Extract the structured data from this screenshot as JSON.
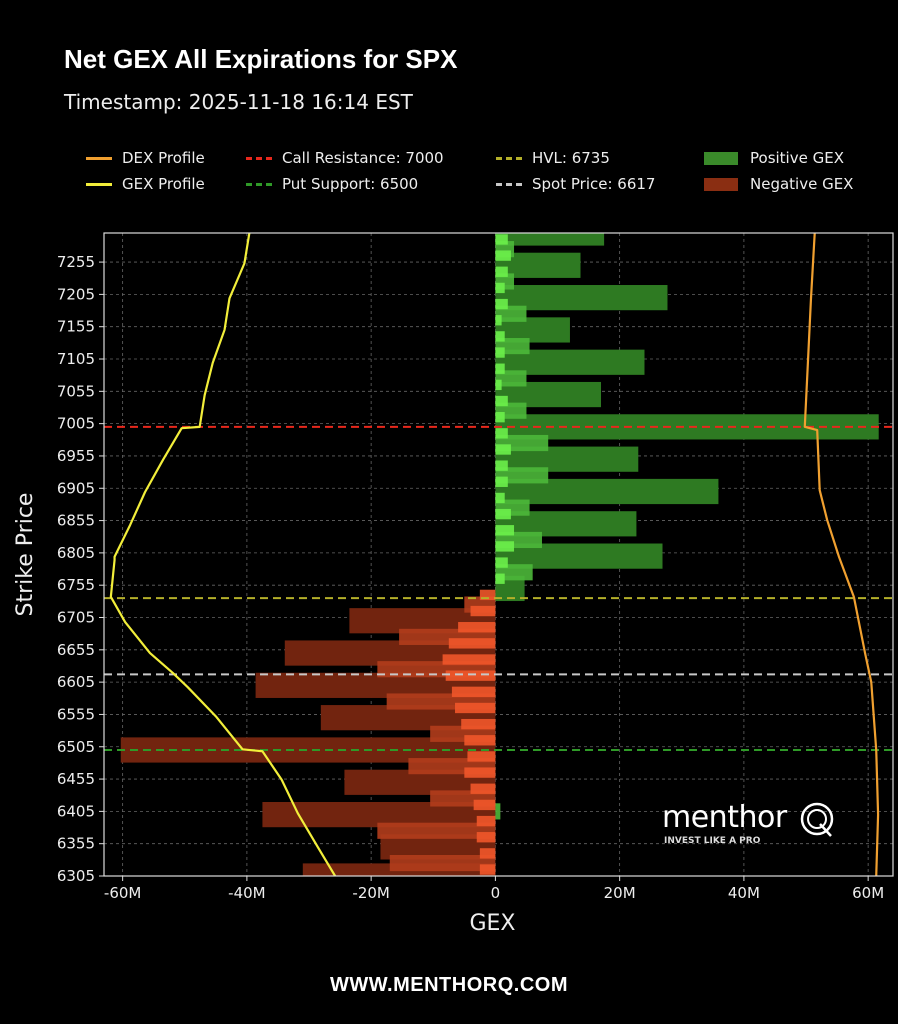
{
  "header": {
    "title": "Net GEX All Expirations for SPX",
    "timestamp": "Timestamp: 2025-11-18 16:14 EST"
  },
  "footer": {
    "url": "WWW.MENTHORQ.COM"
  },
  "logo": {
    "word": "menthor",
    "letter": "Q",
    "tagline": "INVEST LIKE A PRO"
  },
  "colors": {
    "dex": "#f0a030",
    "gex": "#f2ee3a",
    "call": "#e8281c",
    "put": "#2f9a28",
    "hvl": "#b5b02a",
    "spot": "#c8c8c8",
    "pos_dark": "#2e7a22",
    "pos_mid": "#4cb83a",
    "pos_bright": "#6cf04a",
    "neg_dark": "#72240f",
    "neg_mid": "#b33d1c",
    "neg_bright": "#f0562a"
  },
  "chart_data": {
    "type": "bar",
    "orientation": "horizontal",
    "title": "Net GEX All Expirations for SPX",
    "xlabel": "GEX",
    "ylabel": "Strike Price",
    "xlim": [
      -63,
      64
    ],
    "ylim": [
      6305,
      7300
    ],
    "x_unit": "M",
    "grid": true,
    "legend_placement": "top",
    "xticks": [
      {
        "v": -60,
        "label": "-60M"
      },
      {
        "v": -40,
        "label": "-40M"
      },
      {
        "v": -20,
        "label": "-20M"
      },
      {
        "v": 0,
        "label": "0"
      },
      {
        "v": 20,
        "label": "20M"
      },
      {
        "v": 40,
        "label": "40M"
      },
      {
        "v": 60,
        "label": "60M"
      }
    ],
    "yticks": [
      "6305",
      "6355",
      "6405",
      "6455",
      "6505",
      "6555",
      "6605",
      "6655",
      "6705",
      "6755",
      "6805",
      "6855",
      "6905",
      "6955",
      "7005",
      "7055",
      "7105",
      "7155",
      "7205",
      "7255"
    ],
    "legend": [
      {
        "key": "dex",
        "label": "DEX Profile",
        "kind": "line"
      },
      {
        "key": "gex",
        "label": "GEX Profile",
        "kind": "line"
      },
      {
        "key": "call",
        "label": "Call Resistance: 7000",
        "kind": "dash"
      },
      {
        "key": "put",
        "label": "Put Support: 6500",
        "kind": "dash"
      },
      {
        "key": "hvl",
        "label": "HVL: 6735",
        "kind": "dash"
      },
      {
        "key": "spot",
        "label": "Spot Price: 6617",
        "kind": "dash"
      },
      {
        "key": "pos_dark",
        "label": "Positive GEX",
        "kind": "box"
      },
      {
        "key": "neg_dark",
        "label": "Negative GEX",
        "kind": "box"
      }
    ],
    "levels": [
      {
        "name": "call-resistance",
        "value": 7000,
        "color_key": "call"
      },
      {
        "name": "hvl",
        "value": 6735,
        "color_key": "hvl"
      },
      {
        "name": "spot-price",
        "value": 6617,
        "color_key": "spot"
      },
      {
        "name": "put-support",
        "value": 6500,
        "color_key": "put"
      }
    ],
    "series": [
      {
        "name": "GEX major strikes",
        "layer": "dark",
        "strikes": [
          7300,
          7250,
          7200,
          7150,
          7100,
          7050,
          7000,
          6950,
          6900,
          6850,
          6800,
          6750,
          6700,
          6650,
          6600,
          6550,
          6500,
          6450,
          6400,
          6350,
          6305
        ],
        "values": [
          17.5,
          13.7,
          27.7,
          12,
          24,
          17,
          61.7,
          23,
          35.9,
          22.7,
          26.9,
          4.7,
          -23.5,
          -33.9,
          -38.6,
          -28.1,
          -60.3,
          -24.3,
          -37.5,
          -18.5,
          -31
        ]
      },
      {
        "name": "GEX intermediate strikes",
        "layer": "mid",
        "strikes": [
          7275,
          7225,
          7175,
          7125,
          7075,
          7025,
          6975,
          6925,
          6875,
          6825,
          6775,
          6725,
          6675,
          6625,
          6575,
          6525,
          6475,
          6425,
          6405,
          6375,
          6325
        ],
        "values": [
          3,
          3,
          5,
          5.5,
          5,
          5,
          8.5,
          8.5,
          5.5,
          7.5,
          6,
          -5,
          -15.5,
          -19,
          -17.5,
          -10.5,
          -14,
          -10.5,
          0.8,
          -19,
          -17
        ]
      },
      {
        "name": "GEX fine strikes",
        "layer": "bright",
        "strikes": [
          7290,
          7265,
          7240,
          7215,
          7190,
          7165,
          7140,
          7115,
          7090,
          7065,
          7040,
          7015,
          6990,
          6965,
          6940,
          6915,
          6890,
          6865,
          6840,
          6815,
          6790,
          6765,
          6740,
          6715,
          6690,
          6665,
          6640,
          6615,
          6590,
          6565,
          6540,
          6515,
          6490,
          6465,
          6440,
          6415,
          6390,
          6365,
          6340,
          6315
        ],
        "values": [
          2,
          2.5,
          2,
          1.5,
          2,
          1,
          1.5,
          1.5,
          1.5,
          1,
          2,
          1.5,
          2,
          2.5,
          2,
          2,
          1.5,
          2.5,
          3,
          3,
          2,
          1.5,
          -2.5,
          -4,
          -6,
          -7.5,
          -8.5,
          -8,
          -7,
          -6.5,
          -5.5,
          -5,
          -4.5,
          -5,
          -4,
          -3.5,
          -3,
          -3,
          -2.5,
          -2.5
        ]
      }
    ],
    "gex_profile": {
      "strikes": [
        7300,
        7253,
        7199,
        7150,
        7099,
        7049,
        7000,
        6998,
        6949,
        6899,
        6848,
        6799,
        6794,
        6737,
        6698,
        6650,
        6619,
        6597,
        6551,
        6501,
        6498,
        6454,
        6402,
        6350,
        6305
      ],
      "values": [
        -39.6,
        -40.4,
        -42.8,
        -43.6,
        -45.5,
        -46.8,
        -47.6,
        -50.5,
        -53.5,
        -56.4,
        -58.8,
        -61.3,
        -61.3,
        -61.9,
        -59.6,
        -55.6,
        -51.9,
        -49.5,
        -44.9,
        -40.7,
        -37.5,
        -34.4,
        -31.8,
        -28.6,
        -25.8
      ]
    },
    "dex_profile": {
      "strikes": [
        7300,
        7199,
        7099,
        7000,
        6995,
        6902,
        6856,
        6799,
        6737,
        6650,
        6605,
        6500,
        6400,
        6305
      ],
      "values": [
        51.4,
        50.8,
        50.3,
        49.8,
        51.8,
        52.2,
        53.4,
        55.3,
        57.7,
        59.5,
        60.5,
        61.3,
        61.6,
        61.3
      ]
    }
  }
}
